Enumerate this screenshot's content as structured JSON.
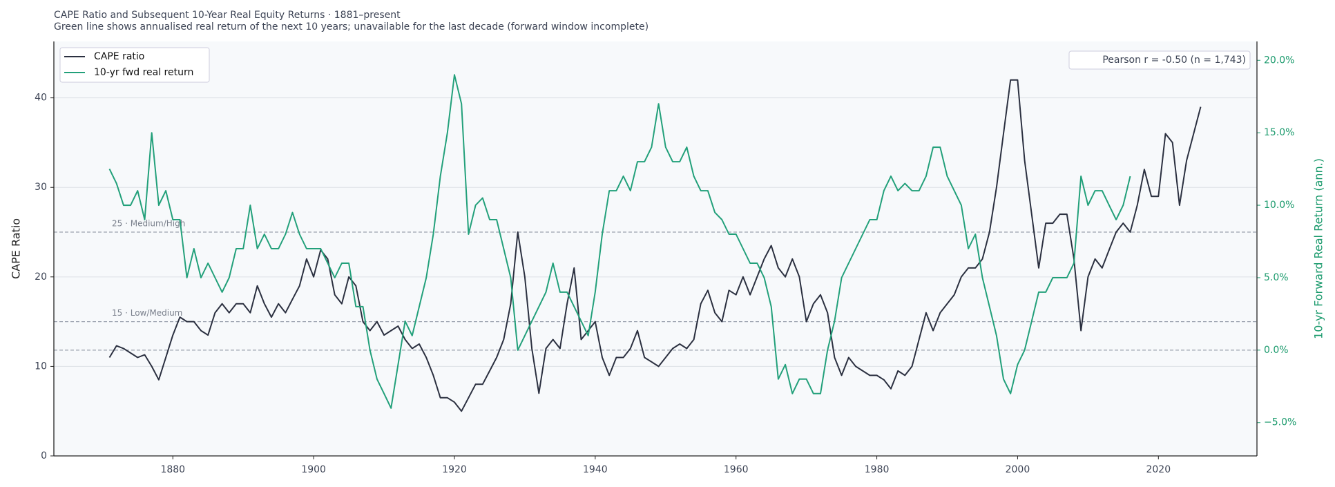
{
  "chart_data": {
    "type": "line",
    "title": "CAPE Ratio and Subsequent 10-Year Real Equity Returns  ·  1881–present",
    "subtitle": "Green line shows annualised real return of the next 10 years; unavailable for the last decade (forward window incomplete)",
    "y_label": "CAPE Ratio",
    "y2_label": "10-yr Forward Real Return (ann.)",
    "annotation": "Pearson r = -0.50  (n = 1,743)",
    "legend_position": "upper left",
    "grid": true,
    "x": [
      1871,
      1872,
      1873,
      1874,
      1875,
      1876,
      1877,
      1878,
      1879,
      1880,
      1881,
      1882,
      1883,
      1884,
      1885,
      1886,
      1887,
      1888,
      1889,
      1890,
      1891,
      1892,
      1893,
      1894,
      1895,
      1896,
      1897,
      1898,
      1899,
      1900,
      1901,
      1902,
      1903,
      1904,
      1905,
      1906,
      1907,
      1908,
      1909,
      1910,
      1911,
      1912,
      1913,
      1914,
      1915,
      1916,
      1917,
      1918,
      1919,
      1920,
      1921,
      1922,
      1923,
      1924,
      1925,
      1926,
      1927,
      1928,
      1929,
      1930,
      1931,
      1932,
      1933,
      1934,
      1935,
      1936,
      1937,
      1938,
      1939,
      1940,
      1941,
      1942,
      1943,
      1944,
      1945,
      1946,
      1947,
      1948,
      1949,
      1950,
      1951,
      1952,
      1953,
      1954,
      1955,
      1956,
      1957,
      1958,
      1959,
      1960,
      1961,
      1962,
      1963,
      1964,
      1965,
      1966,
      1967,
      1968,
      1969,
      1970,
      1971,
      1972,
      1973,
      1974,
      1975,
      1976,
      1977,
      1978,
      1979,
      1980,
      1981,
      1982,
      1983,
      1984,
      1985,
      1986,
      1987,
      1988,
      1989,
      1990,
      1991,
      1992,
      1993,
      1994,
      1995,
      1996,
      1997,
      1998,
      1999,
      2000,
      2001,
      2002,
      2003,
      2004,
      2005,
      2006,
      2007,
      2008,
      2009,
      2010,
      2011,
      2012,
      2013,
      2014,
      2015,
      2016,
      2017,
      2018,
      2019,
      2020,
      2021,
      2022,
      2023,
      2024,
      2025,
      2026
    ],
    "series": [
      {
        "name": "CAPE ratio",
        "color": "#2b3040",
        "values": [
          11,
          12.3,
          12,
          11.5,
          11,
          11.3,
          10,
          8.5,
          11,
          13.5,
          15.5,
          15,
          15,
          14,
          13.5,
          16,
          17,
          16,
          17,
          17,
          16,
          19,
          17,
          15.5,
          17,
          16,
          17.5,
          19,
          22,
          20,
          23,
          22,
          18,
          17,
          20,
          19,
          15,
          14,
          15,
          13.5,
          14,
          14.5,
          13,
          12,
          12.5,
          11,
          9,
          6.5,
          6.5,
          6,
          5,
          6.5,
          8,
          8,
          9.5,
          11,
          13,
          17,
          25,
          20,
          12,
          7,
          12,
          13,
          12,
          17,
          21,
          13,
          14,
          15,
          11,
          9,
          11,
          11,
          12,
          14,
          11,
          10.5,
          10,
          11,
          12,
          12.5,
          12,
          13,
          17,
          18.5,
          16,
          15,
          18.5,
          18,
          20,
          18,
          20,
          22,
          23.5,
          21,
          20,
          22,
          20,
          15,
          17,
          18,
          16,
          11,
          9,
          11,
          10,
          9.5,
          9,
          9,
          8.5,
          7.5,
          9.5,
          9,
          10,
          13,
          16,
          14,
          16,
          17,
          18,
          20,
          21,
          21,
          22,
          25,
          30,
          36,
          42,
          42,
          33,
          27,
          21,
          26,
          26,
          27,
          27,
          22,
          14,
          20,
          22,
          21,
          23,
          25,
          26,
          25,
          28,
          32,
          29,
          29,
          36,
          35,
          28,
          33,
          36,
          39
        ]
      },
      {
        "name": "10-yr fwd real return",
        "color": "#22a07a",
        "axis": "y2",
        "values": [
          12.5,
          11.5,
          10,
          10,
          11,
          9,
          15,
          10,
          11,
          9,
          9,
          5,
          7,
          5,
          6,
          5,
          4,
          5,
          7,
          7,
          10,
          7,
          8,
          7,
          7,
          8,
          9.5,
          8,
          7,
          7,
          7,
          6,
          5,
          6,
          6,
          3,
          3,
          0,
          -2,
          -3,
          -4,
          -1,
          2,
          1,
          3,
          5,
          8,
          12,
          15,
          19,
          17,
          8,
          10,
          10.5,
          9,
          9,
          7,
          5,
          0,
          1,
          2,
          3,
          4,
          6,
          4,
          4,
          3,
          2,
          1,
          4,
          8,
          11,
          11,
          12,
          11,
          13,
          13,
          14,
          17,
          14,
          13,
          13,
          14,
          12,
          11,
          11,
          9.5,
          9,
          8,
          8,
          7,
          6,
          6,
          5,
          3,
          -2,
          -1,
          -3,
          -2,
          -2,
          -3,
          -3,
          0,
          2,
          5,
          6,
          7,
          8,
          9,
          9,
          11,
          12,
          11,
          11.5,
          11,
          11,
          12,
          14,
          14,
          12,
          11,
          10,
          7,
          8,
          5,
          3,
          1,
          -2,
          -3,
          -1,
          0,
          2,
          4,
          4,
          5,
          5,
          5,
          6,
          12,
          10,
          11,
          11,
          10,
          9,
          10,
          12,
          null,
          null,
          null,
          null,
          null,
          null,
          null,
          null,
          null,
          null
        ]
      }
    ],
    "xlim": [
      1863.1,
      2034
    ],
    "xticks": [
      1880,
      1900,
      1920,
      1940,
      1960,
      1980,
      2000,
      2020
    ],
    "ylim": [
      0,
      46.3
    ],
    "yticks": [
      0,
      10,
      20,
      30,
      40
    ],
    "y2lim": [
      -7.3,
      21.3
    ],
    "y2ticks": [
      {
        "value": -5,
        "label": "−5.0%"
      },
      {
        "value": 0,
        "label": "0.0%"
      },
      {
        "value": 5,
        "label": "5.0%"
      },
      {
        "value": 10,
        "label": "10.0%"
      },
      {
        "value": 15,
        "label": "15.0%"
      },
      {
        "value": 20,
        "label": "20.0%"
      }
    ],
    "thresholds": [
      {
        "value": 25,
        "label": "25 · Medium/High"
      },
      {
        "value": 15,
        "label": "15 · Low/Medium"
      }
    ],
    "y2_reference_line": 0
  }
}
